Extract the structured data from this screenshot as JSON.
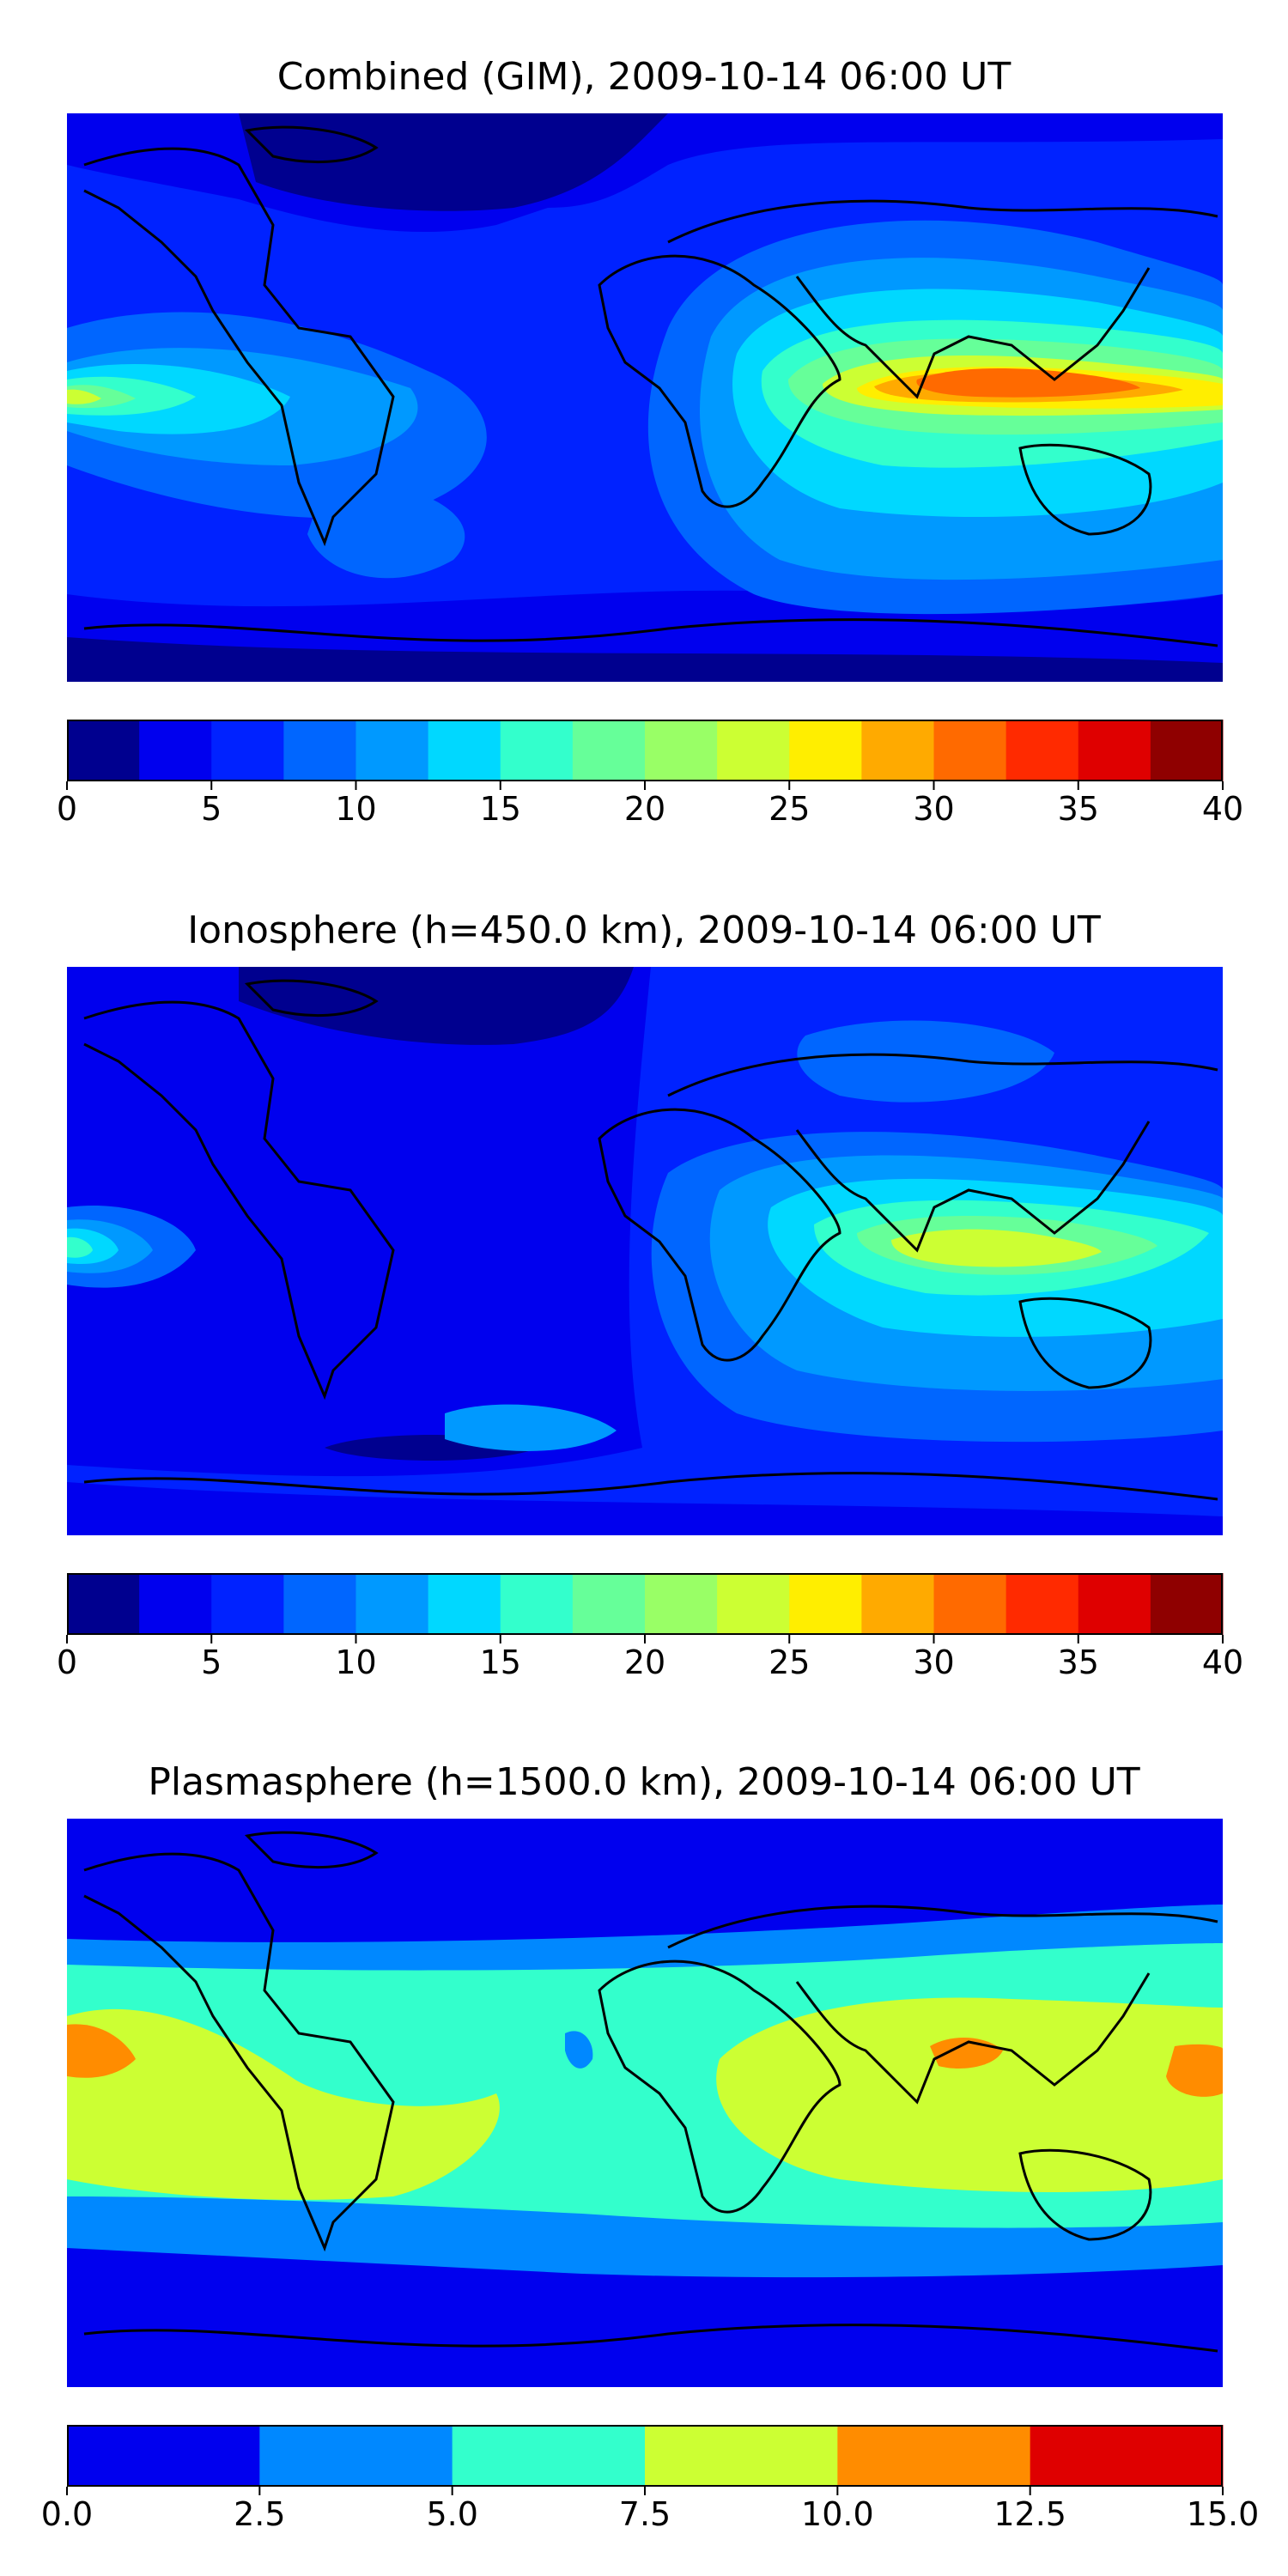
{
  "panels": [
    {
      "id": "combined",
      "title": "Combined (GIM), 2009-10-14 06:00 UT",
      "colorbar": {
        "ticks": [
          "0",
          "5",
          "10",
          "15",
          "20",
          "25",
          "30",
          "35",
          "40"
        ],
        "levels": [
          "#00008f",
          "#0000ee",
          "#0022ff",
          "#0066ff",
          "#0099ff",
          "#00d8ff",
          "#33ffcc",
          "#66ff99",
          "#99ff66",
          "#ccff33",
          "#ffee00",
          "#ffaa00",
          "#ff6a00",
          "#ff2a00",
          "#df0000",
          "#8f0000"
        ]
      }
    },
    {
      "id": "ionosphere",
      "title": "Ionosphere  (h=450.0 km), 2009-10-14 06:00 UT",
      "colorbar": {
        "ticks": [
          "0",
          "5",
          "10",
          "15",
          "20",
          "25",
          "30",
          "35",
          "40"
        ],
        "levels": [
          "#00008f",
          "#0000ee",
          "#0022ff",
          "#0066ff",
          "#0099ff",
          "#00d8ff",
          "#33ffcc",
          "#66ff99",
          "#99ff66",
          "#ccff33",
          "#ffee00",
          "#ffaa00",
          "#ff6a00",
          "#ff2a00",
          "#df0000",
          "#8f0000"
        ]
      }
    },
    {
      "id": "plasmasphere",
      "title": "Plasmasphere (h=1500.0 km), 2009-10-14 06:00 UT",
      "colorbar": {
        "ticks": [
          "0.0",
          "2.5",
          "5.0",
          "7.5",
          "10.0",
          "12.5",
          "15.0"
        ],
        "levels": [
          "#0000ee",
          "#0088ff",
          "#33ffcc",
          "#ccff33",
          "#ff8c00",
          "#df0000"
        ]
      }
    }
  ]
}
